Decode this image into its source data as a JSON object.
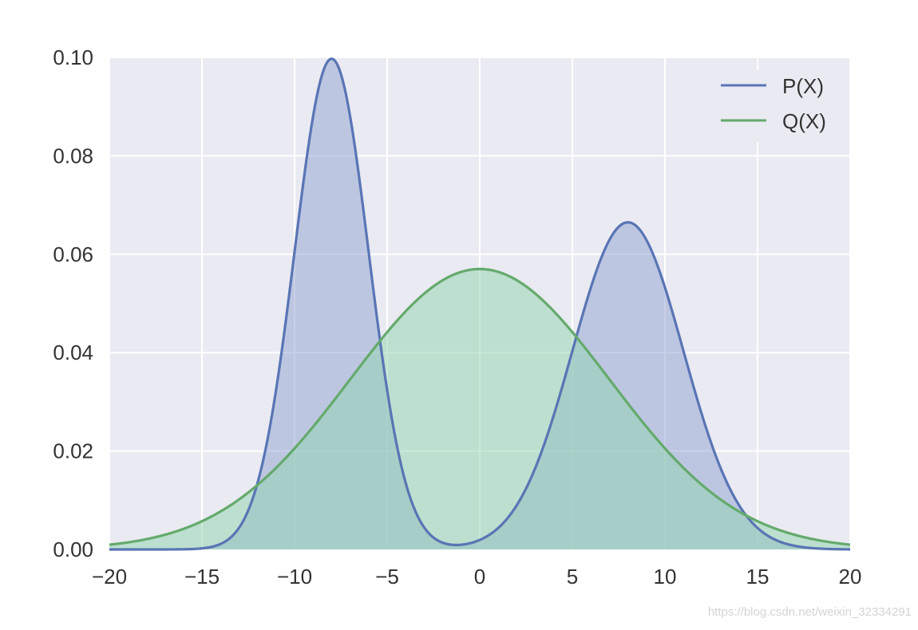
{
  "chart_data": {
    "type": "area",
    "title": "",
    "xlabel": "",
    "ylabel": "",
    "xlim": [
      -20,
      20
    ],
    "ylim": [
      0,
      0.1
    ],
    "x_ticks": [
      -20,
      -15,
      -10,
      -5,
      0,
      5,
      10,
      15,
      20
    ],
    "x_tick_labels": [
      "−20",
      "−15",
      "−10",
      "−5",
      "0",
      "5",
      "10",
      "15",
      "20"
    ],
    "y_ticks": [
      0,
      0.02,
      0.04,
      0.06,
      0.08,
      0.1
    ],
    "y_tick_labels": [
      "0.00",
      "0.02",
      "0.04",
      "0.06",
      "0.08",
      "0.10"
    ],
    "grid": true,
    "legend_position": "top-right",
    "series": [
      {
        "name": "P(X)",
        "color": "#5975b5",
        "fill_color": "#8fa2cf",
        "distribution": "mixture of two normals",
        "components": [
          {
            "mean": -8,
            "std": 2,
            "weight": 0.5
          },
          {
            "mean": 8,
            "std": 3,
            "weight": 0.5
          }
        ],
        "peaks": [
          {
            "x": -8,
            "y": 0.1
          },
          {
            "x": 8,
            "y": 0.067
          }
        ]
      },
      {
        "name": "Q(X)",
        "color": "#64aa6c",
        "fill_color": "#8fd4ad",
        "distribution": "normal",
        "components": [
          {
            "mean": 0,
            "std": 7,
            "weight": 1
          }
        ],
        "peaks": [
          {
            "x": 0,
            "y": 0.057
          }
        ]
      }
    ]
  },
  "watermark": "https://blog.csdn.net/weixin_32334291"
}
